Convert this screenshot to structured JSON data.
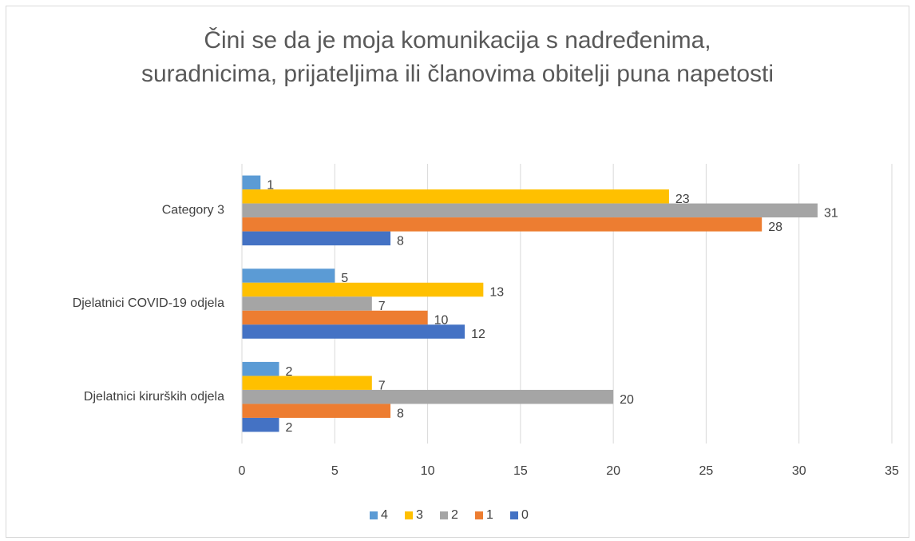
{
  "chart_data": {
    "type": "bar",
    "orientation": "horizontal",
    "title": "Čini se da je moja komunikacija s nadređenima, suradnicima, prijateljima ili članovima obitelji puna napetosti",
    "categories": [
      "Djelatnici kirurških odjela",
      "Djelatnici COVID-19 odjela",
      "Category 3"
    ],
    "series": [
      {
        "name": "4",
        "color": "#5B9BD5",
        "values": [
          2,
          5,
          1
        ]
      },
      {
        "name": "3",
        "color": "#FFC000",
        "values": [
          7,
          13,
          23
        ]
      },
      {
        "name": "2",
        "color": "#A5A5A5",
        "values": [
          20,
          7,
          31
        ]
      },
      {
        "name": "1",
        "color": "#ED7D31",
        "values": [
          8,
          10,
          28
        ]
      },
      {
        "name": "0",
        "color": "#4472C4",
        "values": [
          2,
          12,
          8
        ]
      }
    ],
    "xlim": [
      0,
      35
    ],
    "xticks": [
      0,
      5,
      10,
      15,
      20,
      25,
      30,
      35
    ],
    "grid": true,
    "legend": "bottom"
  }
}
